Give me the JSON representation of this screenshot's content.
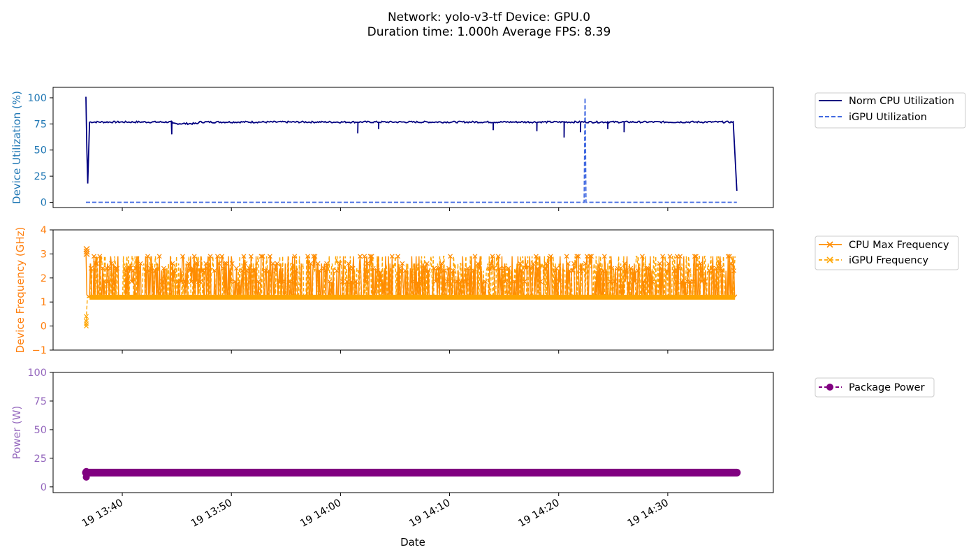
{
  "title_lines": [
    "Network: yolo-v3-tf Device: GPU.0",
    "Duration time: 1.000h Average FPS: 8.39"
  ],
  "xlabel": "Date",
  "x_ticks": [
    "19 13:40",
    "19 13:50",
    "19 14:00",
    "19 14:10",
    "19 14:20",
    "19 14:30"
  ],
  "colors": {
    "cpu_util": "#000080",
    "igpu_util": "#4169e1",
    "cpu_freq": "#ff8c00",
    "igpu_freq": "#ffa500",
    "power": "#800080",
    "util_axis": "#1f77b4",
    "freq_axis": "#ff7f0e",
    "power_axis": "#9467bd"
  },
  "chart_data": [
    {
      "type": "line",
      "ylabel": "Device Utilization (%)",
      "ylim": [
        -5,
        110
      ],
      "yticks": [
        "0",
        "25",
        "50",
        "75",
        "100"
      ],
      "ytick_values": [
        0,
        25,
        50,
        75,
        100
      ],
      "xlim": [
        "13:36:40",
        "14:36:40"
      ],
      "legend": "outside-right-top",
      "series": [
        {
          "name": "Norm CPU Utilization",
          "style": "solid",
          "baseline": 77,
          "points": [
            [
              "13:36:40",
              101
            ],
            [
              "13:36:45",
              52
            ],
            [
              "13:36:50",
              18
            ],
            [
              "13:37:00",
              77
            ],
            [
              "13:44:30",
              76
            ],
            [
              "13:44:32",
              65
            ],
            [
              "13:47:00",
              77
            ],
            [
              "14:01:30",
              77
            ],
            [
              "14:01:35",
              66
            ],
            [
              "14:03:30",
              70
            ],
            [
              "14:14:00",
              69
            ],
            [
              "14:18:00",
              68
            ],
            [
              "14:20:30",
              62
            ],
            [
              "14:22:00",
              67
            ],
            [
              "14:24:30",
              70
            ],
            [
              "14:26:00",
              67
            ],
            [
              "14:36:00",
              77
            ],
            [
              "14:36:20",
              11
            ]
          ]
        },
        {
          "name": "iGPU Utilization",
          "style": "dashed",
          "points": [
            [
              "13:36:40",
              0
            ],
            [
              "14:22:20",
              0
            ],
            [
              "14:22:25",
              100
            ],
            [
              "14:22:30",
              0
            ],
            [
              "14:36:20",
              0
            ]
          ]
        }
      ]
    },
    {
      "type": "line",
      "ylabel": "Device Frequency (GHz)",
      "ylim": [
        -1,
        4
      ],
      "yticks": [
        "−1",
        "0",
        "1",
        "2",
        "3",
        "4"
      ],
      "ytick_values": [
        -1,
        0,
        1,
        2,
        3,
        4
      ],
      "legend": "outside-right-top",
      "series": [
        {
          "name": "CPU Max Frequency",
          "style": "solid-x",
          "range": [
            1.2,
            3.0
          ],
          "start": 3.2,
          "end": 1.3
        },
        {
          "name": "iGPU Frequency",
          "style": "dashed-x",
          "range": [
            1.2,
            2.9
          ],
          "start": [
            0.0,
            0.1,
            0.2,
            0.4
          ],
          "end": 1.2
        }
      ]
    },
    {
      "type": "line",
      "ylabel": "Power (W)",
      "ylim": [
        -5,
        100
      ],
      "yticks": [
        "0",
        "25",
        "50",
        "75",
        "100"
      ],
      "ytick_values": [
        0,
        25,
        50,
        75,
        100
      ],
      "legend": "outside-right-top",
      "series": [
        {
          "name": "Package Power",
          "style": "dashed-o",
          "value": 12.5,
          "start": [
            13.5,
            8.5
          ]
        }
      ]
    }
  ]
}
